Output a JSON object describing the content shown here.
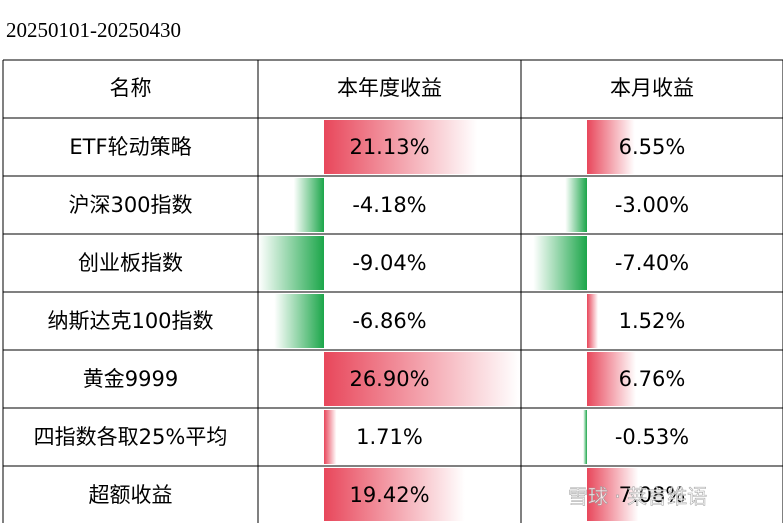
{
  "header": {
    "title": "20250101-20250430"
  },
  "table": {
    "columns": [
      "名称",
      "本年度收益",
      "本月收益"
    ],
    "rows": [
      {
        "name": "ETF轮动策略",
        "ytd": {
          "value": 21.13,
          "label": "21.13%"
        },
        "month": {
          "value": 6.55,
          "label": "6.55%"
        }
      },
      {
        "name": "沪深300指数",
        "ytd": {
          "value": -4.18,
          "label": "-4.18%"
        },
        "month": {
          "value": -3.0,
          "label": "-3.00%"
        }
      },
      {
        "name": "创业板指数",
        "ytd": {
          "value": -9.04,
          "label": "-9.04%"
        },
        "month": {
          "value": -7.4,
          "label": "-7.40%"
        }
      },
      {
        "name": "纳斯达克100指数",
        "ytd": {
          "value": -6.86,
          "label": "-6.86%"
        },
        "month": {
          "value": 1.52,
          "label": "1.52%"
        }
      },
      {
        "name": "黄金9999",
        "ytd": {
          "value": 26.9,
          "label": "26.90%"
        },
        "month": {
          "value": 6.76,
          "label": "6.76%"
        }
      },
      {
        "name": "四指数各取25%平均",
        "ytd": {
          "value": 1.71,
          "label": "1.71%"
        },
        "month": {
          "value": -0.53,
          "label": "-0.53%"
        }
      },
      {
        "name": "超额收益",
        "ytd": {
          "value": 19.42,
          "label": "19.42%"
        },
        "month": {
          "value": 7.08,
          "label": "7.08%"
        }
      }
    ]
  },
  "watermark": "雪球 · 莱言维语"
}
